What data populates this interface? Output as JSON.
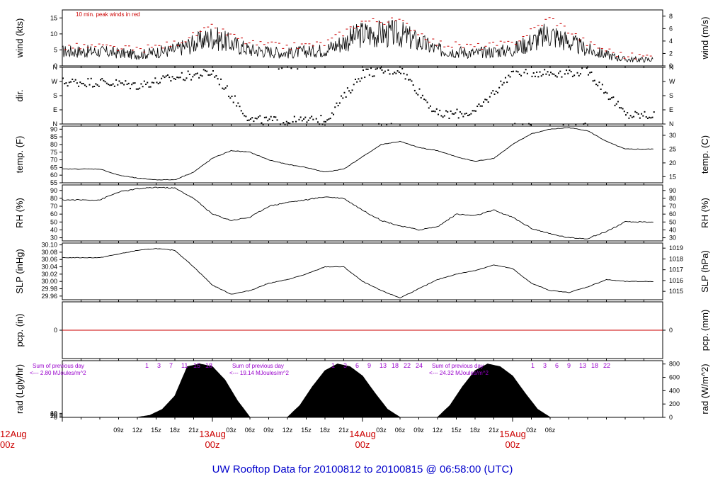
{
  "title": "UW Rooftop Data for 20100812  to  20100815 @ 06:58:00  (UTC)",
  "colors": {
    "axis": "#000000",
    "peak": "#cc0000",
    "day_label": "#cc0000",
    "solar_note": "#9900cc",
    "title": "#0000cc"
  },
  "chart_data": [
    {
      "type": "line",
      "id": "wind",
      "ylabel_left": "wind (kts)",
      "ylabel_right": "wind (m/s)",
      "annotation": "10 min. peak winds in red",
      "yticks_left": [
        0,
        5,
        10,
        15
      ],
      "yticks_right": [
        0,
        2,
        4,
        6,
        8
      ],
      "ylim": [
        0,
        17.5
      ],
      "series": [
        {
          "role": "mean_wind",
          "x": [
            6,
            12,
            18,
            24,
            30,
            36,
            42,
            48,
            54,
            60,
            66,
            72,
            78,
            84,
            90
          ],
          "y": [
            4.5,
            3.5,
            5,
            9,
            5,
            4,
            5,
            10,
            10,
            5,
            4,
            5,
            10,
            5,
            2
          ]
        },
        {
          "role": "peak_wind",
          "x": [
            6,
            12,
            18,
            24,
            30,
            36,
            42,
            48,
            54,
            60,
            66,
            72,
            78,
            84,
            90
          ],
          "y": [
            6,
            5,
            7,
            12,
            7,
            6,
            7,
            14,
            14,
            7,
            6,
            7,
            15,
            7,
            3
          ]
        }
      ]
    },
    {
      "type": "scatter",
      "id": "dir",
      "ylabel_left": "dir.",
      "ytick_labels": [
        "N",
        "E",
        "S",
        "W",
        "N"
      ],
      "ylim": [
        0,
        360
      ],
      "x": [
        6,
        12,
        18,
        24,
        30,
        36,
        42,
        48,
        54,
        60,
        66,
        72,
        78,
        84,
        90
      ],
      "y": [
        270,
        250,
        300,
        330,
        30,
        20,
        30,
        330,
        350,
        60,
        80,
        340,
        330,
        340,
        60
      ]
    },
    {
      "type": "line",
      "id": "temp",
      "ylabel_left": "temp. (F)",
      "ylabel_right": "temp. (C)",
      "yticks_left": [
        55,
        60,
        65,
        70,
        75,
        80,
        85,
        90
      ],
      "yticks_right": [
        15,
        20,
        25,
        30
      ],
      "ylim": [
        55,
        92
      ],
      "x": [
        6,
        9,
        12,
        15,
        18,
        21,
        24,
        27,
        30,
        33,
        36,
        39,
        42,
        45,
        48,
        51,
        54,
        57,
        60,
        63,
        66,
        69,
        72,
        75,
        78,
        81,
        84,
        87,
        90
      ],
      "y": [
        64,
        60,
        58,
        57,
        57,
        62,
        71,
        76,
        75,
        70,
        67,
        65,
        62,
        64,
        72,
        80,
        82,
        78,
        76,
        72,
        69,
        71,
        80,
        87,
        90,
        91,
        89,
        82,
        77
      ]
    },
    {
      "type": "line",
      "id": "rh",
      "ylabel_left": "RH (%)",
      "ylabel_right": "RH (%)",
      "yticks_left": [
        30,
        40,
        50,
        60,
        70,
        80,
        90
      ],
      "yticks_right": [
        30,
        40,
        50,
        60,
        70,
        80,
        90
      ],
      "ylim": [
        26,
        97
      ],
      "x": [
        6,
        9,
        12,
        15,
        18,
        21,
        24,
        27,
        30,
        33,
        36,
        39,
        42,
        45,
        48,
        51,
        54,
        57,
        60,
        63,
        66,
        69,
        72,
        75,
        78,
        81,
        84,
        87,
        90
      ],
      "y": [
        78,
        88,
        92,
        94,
        93,
        80,
        60,
        52,
        56,
        70,
        75,
        78,
        82,
        80,
        65,
        52,
        45,
        40,
        44,
        60,
        58,
        65,
        56,
        42,
        35,
        30,
        29,
        38,
        50
      ]
    },
    {
      "type": "line",
      "id": "slp",
      "ylabel_left": "SLP (inHg)",
      "ylabel_right": "SLP (hPa)",
      "yticks_left": [
        "29.96",
        "29.98",
        "30.00",
        "30.02",
        "30.04",
        "30.06",
        "30.08",
        "30.10"
      ],
      "yticks_right": [
        1015,
        1016,
        1017,
        1018,
        1019
      ],
      "ylim": [
        29.95,
        30.105
      ],
      "x": [
        6,
        9,
        12,
        15,
        18,
        21,
        24,
        27,
        30,
        33,
        36,
        39,
        42,
        45,
        48,
        51,
        54,
        57,
        60,
        63,
        66,
        69,
        72,
        75,
        78,
        81,
        84,
        87,
        90
      ],
      "y": [
        30.065,
        30.075,
        30.085,
        30.09,
        30.085,
        30.04,
        29.99,
        29.965,
        29.975,
        29.995,
        30.005,
        30.02,
        30.04,
        30.04,
        30.0,
        29.975,
        29.955,
        29.98,
        30.005,
        30.02,
        30.03,
        30.045,
        30.035,
        29.995,
        29.975,
        29.97,
        29.985,
        30.005,
        30.0
      ]
    },
    {
      "type": "line",
      "id": "pcp",
      "ylabel_left": "pcp. (in)",
      "ylabel_right": "pcp. (mm)",
      "yticks_left": [
        0
      ],
      "yticks_right": [
        0
      ],
      "ylim": [
        -1,
        1
      ],
      "x": [
        6,
        90
      ],
      "y": [
        0,
        0
      ]
    },
    {
      "type": "area",
      "id": "rad",
      "ylabel_left": "rad (Lgly/hr)",
      "ylabel_right": "rad (W/m^2)",
      "yticks_left": [
        0,
        20,
        40,
        60
      ],
      "yticks_right": [
        0,
        200,
        400,
        600,
        800
      ],
      "ylim": [
        0,
        850
      ],
      "series": [
        {
          "x": [
            12,
            14,
            16,
            18,
            20,
            22,
            24,
            26,
            28,
            30
          ],
          "y": [
            0,
            30,
            120,
            320,
            760,
            800,
            760,
            560,
            250,
            0
          ]
        },
        {
          "x": [
            36,
            38,
            40,
            42,
            44,
            46,
            48,
            50,
            52,
            54
          ],
          "y": [
            0,
            180,
            460,
            700,
            800,
            760,
            620,
            360,
            120,
            0
          ]
        },
        {
          "x": [
            60,
            62,
            64,
            66,
            68,
            70,
            72,
            74,
            76,
            78
          ],
          "y": [
            0,
            180,
            460,
            700,
            800,
            760,
            620,
            360,
            120,
            0
          ]
        }
      ],
      "annotations": [
        {
          "line1": "Sum of previous day",
          "line2": "<--- 2.80 MJoules/m^2"
        },
        {
          "line1": "Sum of previous day",
          "line2": "<--- 19.14 MJoules/m^2"
        },
        {
          "line1": "Sum of previous day",
          "line2": "<--- 24.32 MJoules/m^2"
        }
      ],
      "hour_labels": [
        [
          "1",
          "3",
          "7",
          "11",
          "15",
          "18"
        ],
        [
          "1",
          "3",
          "6",
          "9",
          "13",
          "18",
          "22",
          "24"
        ],
        [
          "1",
          "3",
          "6",
          "9",
          "13",
          "18",
          "22"
        ]
      ]
    }
  ],
  "xaxis": {
    "xlim": [
      0,
      96
    ],
    "hour_ticks": [
      {
        "x": 9,
        "label": "09z"
      },
      {
        "x": 12,
        "label": "12z"
      },
      {
        "x": 15,
        "label": "15z"
      },
      {
        "x": 18,
        "label": "18z"
      },
      {
        "x": 21,
        "label": "21z"
      },
      {
        "x": 27,
        "label": "03z"
      },
      {
        "x": 30,
        "label": "06z"
      },
      {
        "x": 33,
        "label": "09z"
      },
      {
        "x": 36,
        "label": "12z"
      },
      {
        "x": 39,
        "label": "15z"
      },
      {
        "x": 42,
        "label": "18z"
      },
      {
        "x": 45,
        "label": "21z"
      },
      {
        "x": 51,
        "label": "03z"
      },
      {
        "x": 54,
        "label": "06z"
      },
      {
        "x": 57,
        "label": "09z"
      },
      {
        "x": 60,
        "label": "12z"
      },
      {
        "x": 63,
        "label": "15z"
      },
      {
        "x": 66,
        "label": "18z"
      },
      {
        "x": 69,
        "label": "21z"
      },
      {
        "x": 75,
        "label": "03z"
      },
      {
        "x": 78,
        "label": "06z"
      }
    ],
    "day_labels": [
      {
        "x": 0,
        "date": "12Aug",
        "time": "00z"
      },
      {
        "x": 24,
        "date": "13Aug",
        "time": "00z"
      },
      {
        "x": 48,
        "date": "14Aug",
        "time": "00z"
      },
      {
        "x": 72,
        "date": "15Aug",
        "time": "00z"
      }
    ]
  }
}
